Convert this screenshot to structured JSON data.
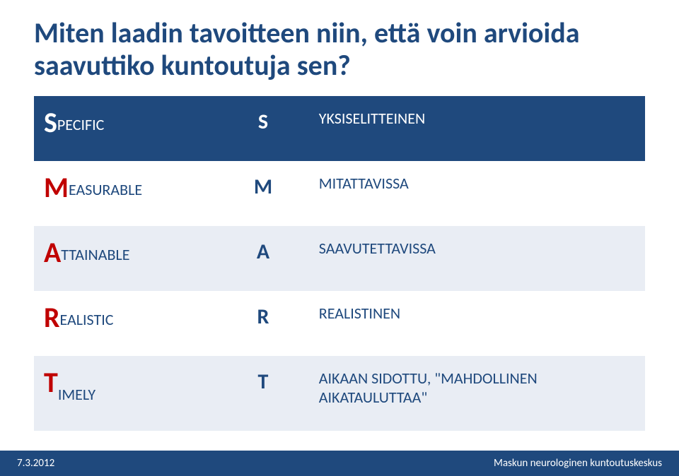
{
  "colors": {
    "title": "#1f497d",
    "header_bg": "#1f497d",
    "header_text": "#ffffff",
    "body_text": "#1f497d",
    "accent_red": "#c00000",
    "row_bg_light": "#ffffff",
    "row_bg_alt": "#e9edf4",
    "footer_bg": "#1f497d",
    "footer_text": "#ffffff"
  },
  "title": "Miten laadin tavoitteen niin, että voin arvioida saavuttiko kuntoutuja sen?",
  "table": {
    "rows": [
      {
        "word_first": "S",
        "word_rest": "PECIFIC",
        "letter": "S",
        "desc": "YKSISELITTEINEN",
        "header": true
      },
      {
        "word_first": "M",
        "word_rest": "EASURABLE",
        "letter": "M",
        "desc": "MITATTAVISSA"
      },
      {
        "word_first": "A",
        "word_rest": "TTAINABLE",
        "letter": "A",
        "desc": "SAAVUTETTAVISSA"
      },
      {
        "word_first": "R",
        "word_rest": "EALISTIC",
        "letter": "R",
        "desc": "REALISTINEN"
      },
      {
        "word_first": "T",
        "word_rest": "IMELY",
        "letter": "T",
        "desc": "AIKAAN SIDOTTU, \"MAHDOLLINEN AIKATAULUTTAA\""
      }
    ]
  },
  "footer": {
    "left": "7.3.2012",
    "right": "Maskun neurologinen kuntoutuskeskus"
  }
}
